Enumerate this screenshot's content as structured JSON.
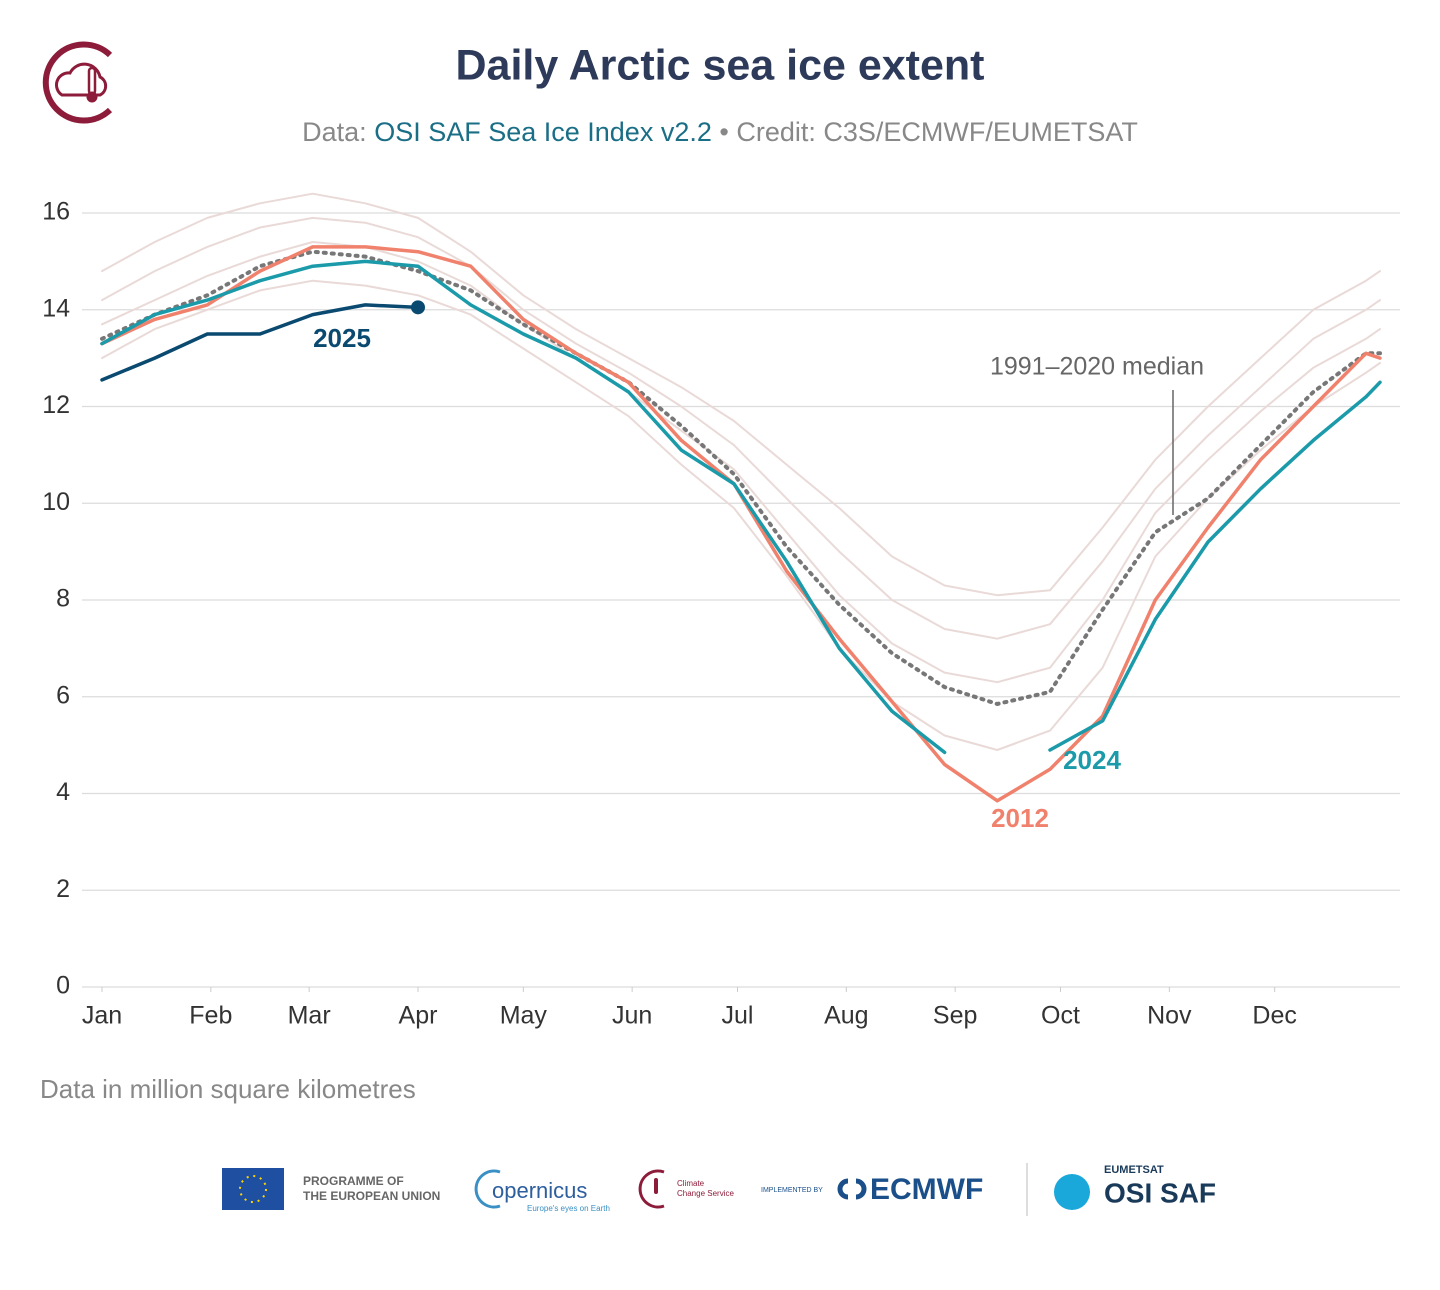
{
  "chart_data": {
    "type": "line",
    "title": "Daily Arctic sea ice extent",
    "subtitle": [
      "Data:",
      "OSI SAF Sea Ice Index v2.2",
      "• Credit: C3S/ECMWF/EUMETSAT"
    ],
    "note": "Data in million square kilometres",
    "x": [
      1,
      16,
      31,
      46,
      61,
      76,
      91,
      106,
      121,
      136,
      151,
      166,
      181,
      196,
      211,
      226,
      241,
      256,
      271,
      286,
      301,
      316,
      331,
      346,
      361,
      365
    ],
    "xlim": [
      1,
      365
    ],
    "xticks": [
      {
        "value": 1,
        "label": "Jan"
      },
      {
        "value": 32,
        "label": "Feb"
      },
      {
        "value": 60,
        "label": "Mar"
      },
      {
        "value": 91,
        "label": "Apr"
      },
      {
        "value": 121,
        "label": "May"
      },
      {
        "value": 152,
        "label": "Jun"
      },
      {
        "value": 182,
        "label": "Jul"
      },
      {
        "value": 213,
        "label": "Aug"
      },
      {
        "value": 244,
        "label": "Sep"
      },
      {
        "value": 274,
        "label": "Oct"
      },
      {
        "value": 305,
        "label": "Nov"
      },
      {
        "value": 335,
        "label": "Dec"
      }
    ],
    "ylim": [
      0,
      16.6
    ],
    "yticks": [
      0,
      2,
      4,
      6,
      8,
      10,
      12,
      14,
      16
    ],
    "grid": true,
    "series": [
      {
        "color": "#e9dad8",
        "values": [
          14.8,
          15.4,
          15.9,
          16.2,
          16.4,
          16.2,
          15.9,
          15.2,
          14.3,
          13.6,
          13.0,
          12.4,
          11.7,
          10.8,
          9.9,
          8.9,
          8.3,
          8.1,
          8.2,
          9.5,
          10.9,
          12.0,
          13.0,
          14.0,
          14.6,
          14.8
        ]
      },
      {
        "color": "#e9dad8",
        "values": [
          14.2,
          14.8,
          15.3,
          15.7,
          15.9,
          15.8,
          15.5,
          14.9,
          14.0,
          13.3,
          12.7,
          12.0,
          11.2,
          10.1,
          9.0,
          8.0,
          7.4,
          7.2,
          7.5,
          8.8,
          10.3,
          11.4,
          12.4,
          13.4,
          14.0,
          14.2
        ]
      },
      {
        "color": "#e9dad8",
        "values": [
          13.7,
          14.2,
          14.7,
          15.1,
          15.4,
          15.3,
          15.0,
          14.5,
          13.7,
          13.0,
          12.3,
          11.5,
          10.7,
          9.4,
          8.1,
          7.1,
          6.5,
          6.3,
          6.6,
          8.0,
          9.8,
          10.9,
          11.9,
          12.8,
          13.4,
          13.6
        ]
      },
      {
        "color": "#e9dad8",
        "values": [
          13.0,
          13.6,
          14.0,
          14.4,
          14.6,
          14.5,
          14.3,
          13.9,
          13.2,
          12.5,
          11.8,
          10.8,
          9.9,
          8.5,
          7.0,
          5.9,
          5.2,
          4.9,
          5.3,
          6.6,
          8.9,
          10.1,
          11.1,
          12.0,
          12.7,
          12.9
        ]
      },
      {
        "name": "1991–2020 median",
        "color": "#777777",
        "style": "dotted",
        "values": [
          13.4,
          13.9,
          14.3,
          14.9,
          15.2,
          15.1,
          14.8,
          14.4,
          13.7,
          13.1,
          12.5,
          11.6,
          10.6,
          9.1,
          7.9,
          6.9,
          6.2,
          5.85,
          6.1,
          7.8,
          9.4,
          10.1,
          11.2,
          12.3,
          13.1,
          13.1
        ]
      },
      {
        "name": "2012",
        "color": "#f0826d",
        "values": [
          13.3,
          13.8,
          14.1,
          14.8,
          15.3,
          15.3,
          15.2,
          14.9,
          13.8,
          13.1,
          12.5,
          11.3,
          10.4,
          8.6,
          7.2,
          5.9,
          4.6,
          3.85,
          4.5,
          5.6,
          8.0,
          9.5,
          10.9,
          12.0,
          13.1,
          13.0
        ]
      },
      {
        "name": "2024",
        "color": "#1b9aaa",
        "values": [
          13.3,
          13.9,
          14.2,
          14.6,
          14.9,
          15.0,
          14.9,
          14.1,
          13.5,
          13.0,
          12.3,
          11.1,
          10.4,
          8.8,
          7.0,
          5.7,
          4.85,
          null,
          4.9,
          5.5,
          7.6,
          9.2,
          10.3,
          11.3,
          12.2,
          12.5
        ]
      },
      {
        "name": "2025",
        "color": "#0a4a70",
        "marker": "end",
        "values": [
          12.55,
          13.0,
          13.5,
          13.5,
          13.9,
          14.1,
          14.05,
          null,
          null,
          null,
          null,
          null,
          null,
          null,
          null,
          null,
          null,
          null,
          null,
          null,
          null,
          null,
          null,
          null,
          null,
          null
        ]
      }
    ]
  },
  "logos": {
    "eu": [
      "PROGRAMME OF",
      "THE EUROPEAN UNION"
    ],
    "copernicus": [
      "opernicus",
      "Europe's eyes on Earth"
    ],
    "c3s": [
      "Climate",
      "Change Service"
    ],
    "ecmwf": [
      "IMPLEMENTED BY",
      "ECMWF"
    ],
    "osisaf": [
      "EUMETSAT",
      "OSI SAF"
    ]
  }
}
